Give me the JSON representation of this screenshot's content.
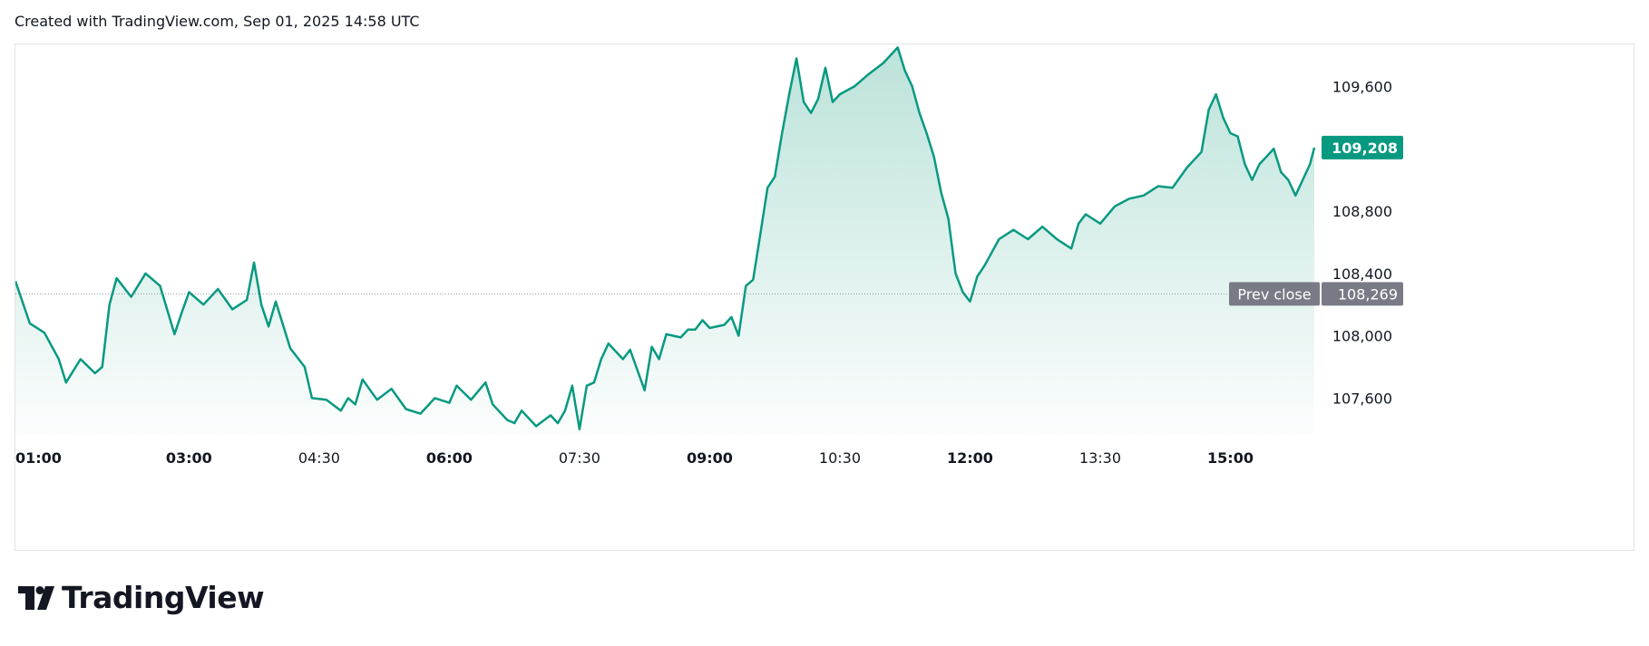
{
  "header": {
    "caption": "Created with TradingView.com, Sep 01, 2025 14:58 UTC"
  },
  "brand": {
    "name": "TradingView",
    "logo_icon": "tradingview-logo-icon"
  },
  "colors": {
    "line": "#089981",
    "fill_top": "#b8e1d8",
    "prev_close_label_bg": "#787b86",
    "last_price_label_bg": "#089981",
    "axis_text": "#131722",
    "dotted_line": "#9598a1"
  },
  "chart_data": {
    "type": "area",
    "title": "",
    "xlabel": "",
    "ylabel": "",
    "ylim": [
      107370,
      109870
    ],
    "x_ticks": [
      {
        "time": "01:00",
        "bold": true
      },
      {
        "time": "03:00",
        "bold": true
      },
      {
        "time": "04:30",
        "bold": false
      },
      {
        "time": "06:00",
        "bold": true
      },
      {
        "time": "07:30",
        "bold": false
      },
      {
        "time": "09:00",
        "bold": true
      },
      {
        "time": "10:30",
        "bold": false
      },
      {
        "time": "12:00",
        "bold": true
      },
      {
        "time": "13:30",
        "bold": false
      },
      {
        "time": "15:00",
        "bold": true
      }
    ],
    "y_ticks": [
      "107,600",
      "108,000",
      "108,400",
      "108,800",
      "109,600"
    ],
    "prev_close": {
      "label": "Prev close",
      "value": 108269,
      "value_label": "108,269"
    },
    "last_price": {
      "value": 109208,
      "value_label": "109,208"
    },
    "grid": false,
    "series": [
      {
        "points": [
          [
            "01:00",
            108350
          ],
          [
            "01:10",
            108080
          ],
          [
            "01:20",
            108020
          ],
          [
            "01:30",
            107850
          ],
          [
            "01:35",
            107700
          ],
          [
            "01:45",
            107850
          ],
          [
            "01:55",
            107760
          ],
          [
            "02:00",
            107800
          ],
          [
            "02:05",
            108200
          ],
          [
            "02:10",
            108370
          ],
          [
            "02:20",
            108250
          ],
          [
            "02:30",
            108400
          ],
          [
            "02:40",
            108320
          ],
          [
            "02:50",
            108010
          ],
          [
            "02:55",
            108150
          ],
          [
            "03:00",
            108280
          ],
          [
            "03:10",
            108200
          ],
          [
            "03:20",
            108300
          ],
          [
            "03:30",
            108170
          ],
          [
            "03:40",
            108230
          ],
          [
            "03:45",
            108470
          ],
          [
            "03:50",
            108200
          ],
          [
            "03:55",
            108060
          ],
          [
            "04:00",
            108220
          ],
          [
            "04:10",
            107920
          ],
          [
            "04:20",
            107800
          ],
          [
            "04:25",
            107600
          ],
          [
            "04:35",
            107590
          ],
          [
            "04:45",
            107520
          ],
          [
            "04:50",
            107600
          ],
          [
            "04:55",
            107560
          ],
          [
            "05:00",
            107720
          ],
          [
            "05:10",
            107590
          ],
          [
            "05:20",
            107660
          ],
          [
            "05:30",
            107530
          ],
          [
            "05:40",
            107500
          ],
          [
            "05:50",
            107600
          ],
          [
            "06:00",
            107570
          ],
          [
            "06:05",
            107680
          ],
          [
            "06:15",
            107590
          ],
          [
            "06:25",
            107700
          ],
          [
            "06:30",
            107560
          ],
          [
            "06:40",
            107460
          ],
          [
            "06:45",
            107440
          ],
          [
            "06:50",
            107520
          ],
          [
            "07:00",
            107420
          ],
          [
            "07:10",
            107490
          ],
          [
            "07:15",
            107440
          ],
          [
            "07:20",
            107520
          ],
          [
            "07:25",
            107680
          ],
          [
            "07:30",
            107400
          ],
          [
            "07:35",
            107680
          ],
          [
            "07:40",
            107700
          ],
          [
            "07:45",
            107850
          ],
          [
            "07:50",
            107950
          ],
          [
            "08:00",
            107850
          ],
          [
            "08:05",
            107910
          ],
          [
            "08:10",
            107780
          ],
          [
            "08:15",
            107650
          ],
          [
            "08:20",
            107930
          ],
          [
            "08:25",
            107850
          ],
          [
            "08:30",
            108010
          ],
          [
            "08:40",
            107990
          ],
          [
            "08:45",
            108040
          ],
          [
            "08:50",
            108040
          ],
          [
            "08:55",
            108100
          ],
          [
            "09:00",
            108050
          ],
          [
            "09:10",
            108070
          ],
          [
            "09:15",
            108120
          ],
          [
            "09:20",
            108000
          ],
          [
            "09:25",
            108320
          ],
          [
            "09:30",
            108360
          ],
          [
            "09:35",
            108650
          ],
          [
            "09:40",
            108950
          ],
          [
            "09:45",
            109020
          ],
          [
            "09:50",
            109300
          ],
          [
            "09:55",
            109550
          ],
          [
            "10:00",
            109780
          ],
          [
            "10:05",
            109500
          ],
          [
            "10:10",
            109430
          ],
          [
            "10:15",
            109520
          ],
          [
            "10:20",
            109720
          ],
          [
            "10:25",
            109500
          ],
          [
            "10:30",
            109550
          ],
          [
            "10:40",
            109600
          ],
          [
            "10:50",
            109680
          ],
          [
            "11:00",
            109750
          ],
          [
            "11:10",
            109850
          ],
          [
            "11:15",
            109700
          ],
          [
            "11:20",
            109600
          ],
          [
            "11:25",
            109430
          ],
          [
            "11:30",
            109300
          ],
          [
            "11:35",
            109150
          ],
          [
            "11:40",
            108920
          ],
          [
            "11:45",
            108750
          ],
          [
            "11:50",
            108400
          ],
          [
            "11:55",
            108280
          ],
          [
            "12:00",
            108220
          ],
          [
            "12:05",
            108380
          ],
          [
            "12:10",
            108450
          ],
          [
            "12:20",
            108620
          ],
          [
            "12:30",
            108680
          ],
          [
            "12:40",
            108620
          ],
          [
            "12:50",
            108700
          ],
          [
            "13:00",
            108620
          ],
          [
            "13:10",
            108560
          ],
          [
            "13:15",
            108720
          ],
          [
            "13:20",
            108780
          ],
          [
            "13:30",
            108720
          ],
          [
            "13:40",
            108830
          ],
          [
            "13:50",
            108880
          ],
          [
            "14:00",
            108900
          ],
          [
            "14:10",
            108960
          ],
          [
            "14:20",
            108950
          ],
          [
            "14:30",
            109080
          ],
          [
            "14:40",
            109180
          ],
          [
            "14:45",
            109450
          ],
          [
            "14:50",
            109550
          ],
          [
            "14:55",
            109400
          ],
          [
            "15:00",
            109300
          ],
          [
            "15:05",
            109280
          ],
          [
            "15:10",
            109100
          ],
          [
            "15:15",
            109000
          ],
          [
            "15:20",
            109100
          ],
          [
            "15:25",
            109150
          ],
          [
            "15:30",
            109200
          ],
          [
            "15:35",
            109050
          ],
          [
            "15:40",
            109000
          ],
          [
            "15:45",
            108900
          ],
          [
            "15:50",
            109000
          ],
          [
            "15:55",
            109100
          ],
          [
            "15:58",
            109208
          ]
        ]
      }
    ]
  }
}
